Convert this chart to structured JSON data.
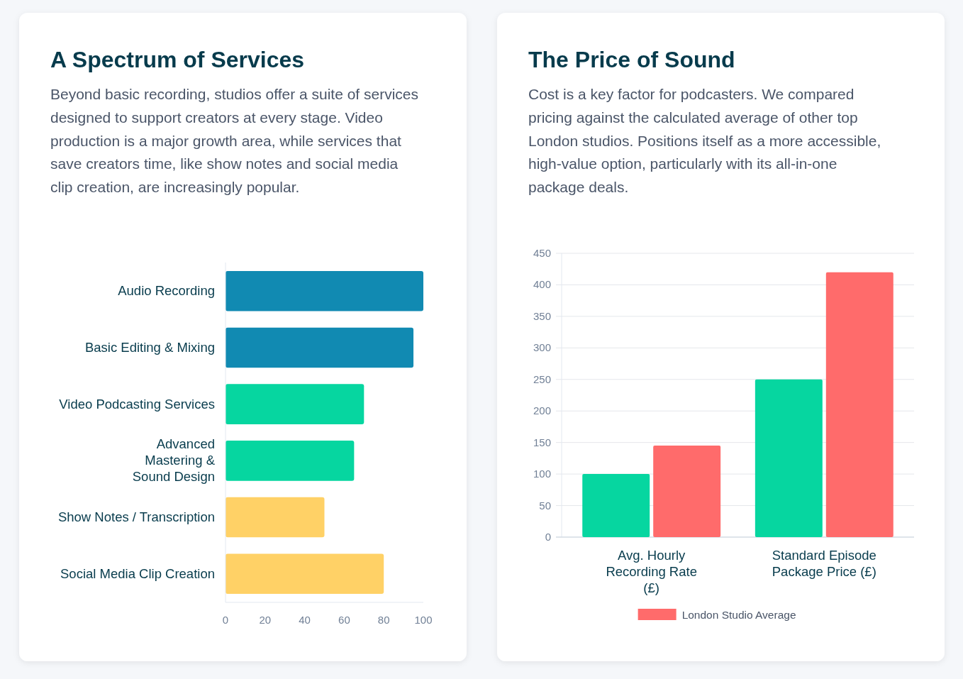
{
  "chart_data": [
    {
      "type": "bar",
      "orientation": "horizontal",
      "title": "A Spectrum of Services",
      "subtitle": "Beyond basic recording, studios offer a suite of services designed to support creators at every stage. Video production is a major growth area, while services that save creators time, like show notes and social media clip creation, are increasingly popular.",
      "categories": [
        "Audio Recording",
        "Basic Editing & Mixing",
        "Video Podcasting Services",
        "Advanced Mastering & Sound Design",
        "Show Notes / Transcription",
        "Social Media Clip Creation"
      ],
      "values": [
        100,
        95,
        70,
        65,
        50,
        80
      ],
      "colors": [
        "#118ab2",
        "#118ab2",
        "#06d6a0",
        "#06d6a0",
        "#ffd166",
        "#ffd166"
      ],
      "xlim": [
        0,
        100
      ],
      "xticks": [
        0,
        20,
        40,
        60,
        80,
        100
      ],
      "grid": false
    },
    {
      "type": "bar",
      "title": "The Price of Sound",
      "subtitle": "Cost is a key factor for podcasters. We compared pricing against the calculated average of other top London studios. Positions itself as a more accessible, high-value option, particularly with its all-in-one package deals.",
      "categories": [
        "Avg. Hourly Recording Rate (£)",
        "Standard Episode Package Price (£)"
      ],
      "series": [
        {
          "color": "#06d6a0",
          "values": [
            100,
            250
          ]
        },
        {
          "name": "London Studio Average",
          "color": "#ff6b6b",
          "values": [
            145,
            420
          ]
        }
      ],
      "ylim": [
        0,
        450
      ],
      "yticks": [
        0,
        50,
        100,
        150,
        200,
        250,
        300,
        350,
        400,
        450
      ],
      "grid": "y",
      "legend": "bottom"
    }
  ]
}
